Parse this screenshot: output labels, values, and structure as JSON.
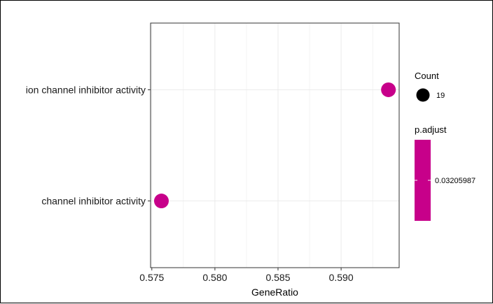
{
  "chart_data": {
    "type": "scatter",
    "xlabel": "GeneRatio",
    "ylabel": "",
    "xlim": [
      0.5749,
      0.5946
    ],
    "x_ticks": [
      0.575,
      0.58,
      0.585,
      0.59
    ],
    "x_tick_labels": [
      "0.575",
      "0.580",
      "0.585",
      "0.590"
    ],
    "categories": [
      "ion channel inhibitor activity",
      "channel inhibitor activity"
    ],
    "points": [
      {
        "term": "ion channel inhibitor activity",
        "x": 0.59375,
        "count": 19,
        "p_adjust": 0.03205987
      },
      {
        "term": "channel inhibitor activity",
        "x": 0.57576,
        "count": 19,
        "p_adjust": 0.03205987
      }
    ],
    "grid": true,
    "legend_position": "right",
    "point_color": "#c7008a",
    "legend": {
      "count": {
        "title": "Count",
        "values": [
          "19"
        ]
      },
      "p_adjust": {
        "title": "p.adjust",
        "values": [
          "0.03205987"
        ],
        "color": "#c7008a"
      }
    }
  }
}
